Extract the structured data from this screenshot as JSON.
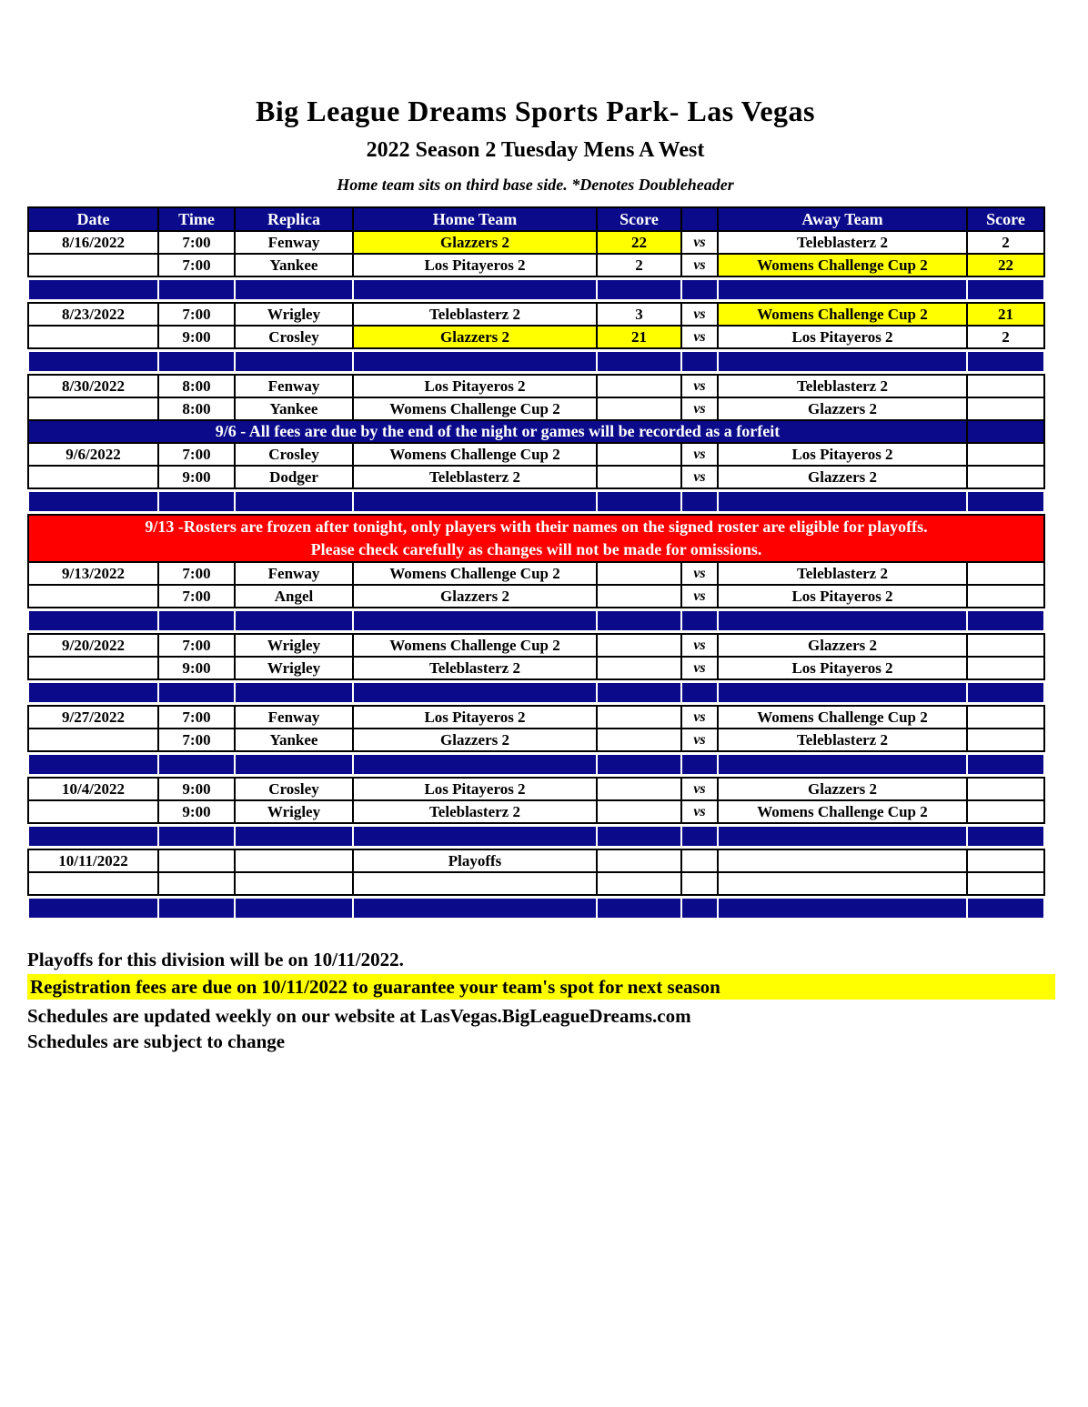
{
  "page": {
    "title": "Big League Dreams Sports Park- Las Vegas",
    "subtitle": "2022 Season 2 Tuesday Mens A West",
    "note": "Home team sits on third base side.  *Denotes Doubleheader"
  },
  "colors": {
    "navy": "#0a0a8a",
    "yellow": "#ffff00",
    "red": "#ff0000"
  },
  "table": {
    "headers": [
      "Date",
      "Time",
      "Replica",
      "Home Team",
      "Score",
      "",
      "Away Team",
      "Score"
    ],
    "vs_label": "vs",
    "rows": [
      {
        "type": "game",
        "date": "8/16/2022",
        "time": "7:00",
        "replica": "Fenway",
        "home": "Glazzers 2",
        "home_score": "22",
        "away": "Teleblasterz 2",
        "away_score": "2",
        "highlight": "home"
      },
      {
        "type": "game",
        "date": "",
        "time": "7:00",
        "replica": "Yankee",
        "home": "Los Pitayeros 2",
        "home_score": "2",
        "away": "Womens Challenge Cup 2",
        "away_score": "22",
        "highlight": "away"
      },
      {
        "type": "spacer"
      },
      {
        "type": "game",
        "date": "8/23/2022",
        "time": "7:00",
        "replica": "Wrigley",
        "home": "Teleblasterz 2",
        "home_score": "3",
        "away": "Womens Challenge Cup 2",
        "away_score": "21",
        "highlight": "away"
      },
      {
        "type": "game",
        "date": "",
        "time": "9:00",
        "replica": "Crosley",
        "home": "Glazzers 2",
        "home_score": "21",
        "away": "Los Pitayeros 2",
        "away_score": "2",
        "highlight": "home"
      },
      {
        "type": "spacer"
      },
      {
        "type": "game",
        "date": "8/30/2022",
        "time": "8:00",
        "replica": "Fenway",
        "home": "Los Pitayeros 2",
        "home_score": "",
        "away": "Teleblasterz 2",
        "away_score": "",
        "highlight": ""
      },
      {
        "type": "game",
        "date": "",
        "time": "8:00",
        "replica": "Yankee",
        "home": "Womens Challenge Cup 2",
        "home_score": "",
        "away": "Glazzers 2",
        "away_score": "",
        "highlight": ""
      },
      {
        "type": "notice_blue",
        "text": "9/6 - All fees are due by the end of the night or games will be recorded as a forfeit"
      },
      {
        "type": "game",
        "date": "9/6/2022",
        "time": "7:00",
        "replica": "Crosley",
        "home": "Womens Challenge Cup 2",
        "home_score": "",
        "away": "Los Pitayeros 2",
        "away_score": "",
        "highlight": ""
      },
      {
        "type": "game",
        "date": "",
        "time": "9:00",
        "replica": "Dodger",
        "home": "Teleblasterz 2",
        "home_score": "",
        "away": "Glazzers 2",
        "away_score": "",
        "highlight": ""
      },
      {
        "type": "spacer"
      },
      {
        "type": "notice_red",
        "lines": [
          "9/13 -Rosters are frozen after tonight, only players with their names on the signed roster are eligible for playoffs.",
          "Please check carefully as changes will not be made for omissions."
        ]
      },
      {
        "type": "game",
        "date": "9/13/2022",
        "time": "7:00",
        "replica": "Fenway",
        "home": "Womens Challenge Cup 2",
        "home_score": "",
        "away": "Teleblasterz 2",
        "away_score": "",
        "highlight": ""
      },
      {
        "type": "game",
        "date": "",
        "time": "7:00",
        "replica": "Angel",
        "home": "Glazzers 2",
        "home_score": "",
        "away": "Los Pitayeros 2",
        "away_score": "",
        "highlight": ""
      },
      {
        "type": "spacer"
      },
      {
        "type": "game",
        "date": "9/20/2022",
        "time": "7:00",
        "replica": "Wrigley",
        "home": "Womens Challenge Cup 2",
        "home_score": "",
        "away": "Glazzers 2",
        "away_score": "",
        "highlight": ""
      },
      {
        "type": "game",
        "date": "",
        "time": "9:00",
        "replica": "Wrigley",
        "home": "Teleblasterz 2",
        "home_score": "",
        "away": "Los Pitayeros 2",
        "away_score": "",
        "highlight": ""
      },
      {
        "type": "spacer"
      },
      {
        "type": "game",
        "date": "9/27/2022",
        "time": "7:00",
        "replica": "Fenway",
        "home": "Los Pitayeros 2",
        "home_score": "",
        "away": "Womens Challenge Cup 2",
        "away_score": "",
        "highlight": ""
      },
      {
        "type": "game",
        "date": "",
        "time": "7:00",
        "replica": "Yankee",
        "home": "Glazzers 2",
        "home_score": "",
        "away": "Teleblasterz 2",
        "away_score": "",
        "highlight": ""
      },
      {
        "type": "spacer"
      },
      {
        "type": "game",
        "date": "10/4/2022",
        "time": "9:00",
        "replica": "Crosley",
        "home": "Los Pitayeros 2",
        "home_score": "",
        "away": "Glazzers 2",
        "away_score": "",
        "highlight": ""
      },
      {
        "type": "game",
        "date": "",
        "time": "9:00",
        "replica": "Wrigley",
        "home": "Teleblasterz 2",
        "home_score": "",
        "away": "Womens Challenge Cup 2",
        "away_score": "",
        "highlight": ""
      },
      {
        "type": "spacer"
      },
      {
        "type": "game",
        "date": "10/11/2022",
        "time": "",
        "replica": "",
        "home": "Playoffs",
        "home_score": "",
        "away": "",
        "away_score": "",
        "highlight": "",
        "no_vs": true
      },
      {
        "type": "game",
        "date": "",
        "time": "",
        "replica": "",
        "home": "",
        "home_score": "",
        "away": "",
        "away_score": "",
        "highlight": "",
        "no_vs": true
      },
      {
        "type": "spacer"
      }
    ]
  },
  "footer": {
    "line1": "Playoffs for this division will be on 10/11/2022.",
    "line2": "Registration fees are due on 10/11/2022 to guarantee your team's spot for next season",
    "line3": "Schedules are updated weekly on our website at LasVegas.BigLeagueDreams.com",
    "line4": "Schedules are subject to change"
  }
}
